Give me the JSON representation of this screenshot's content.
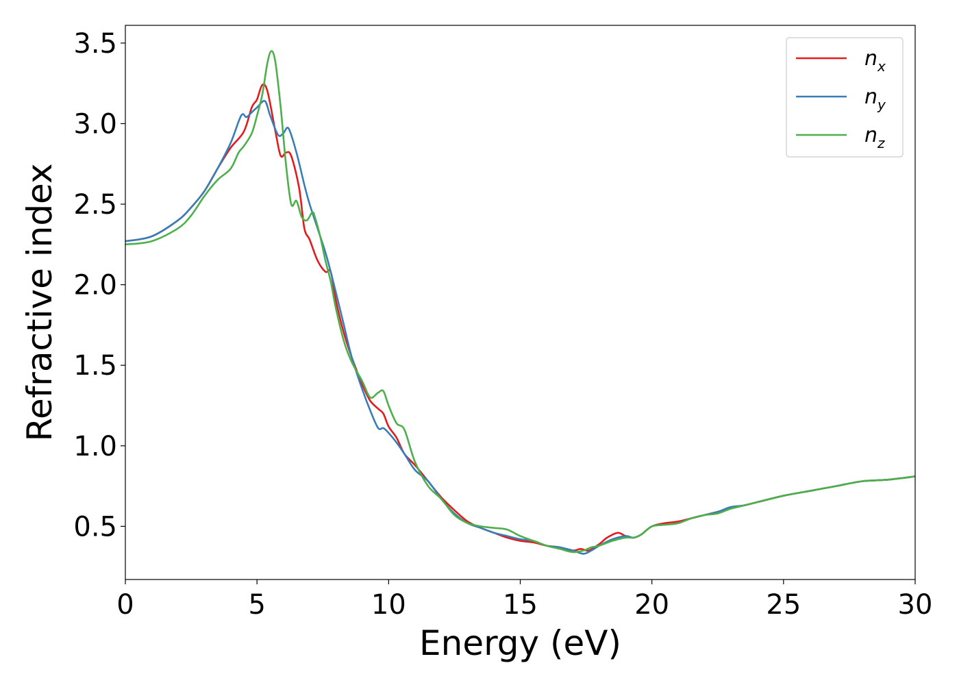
{
  "chart_data": {
    "type": "line",
    "xlabel": "Energy (eV)",
    "ylabel": "Refractive index",
    "xlim": [
      0,
      30
    ],
    "ylim": [
      0.17,
      3.61
    ],
    "xticks": [
      0,
      5,
      10,
      15,
      20,
      25,
      30
    ],
    "yticks": [
      0.5,
      1.0,
      1.5,
      2.0,
      2.5,
      3.0,
      3.5
    ],
    "xtick_labels": [
      "0",
      "5",
      "10",
      "15",
      "20",
      "25",
      "30"
    ],
    "ytick_labels": [
      "0.5",
      "1.0",
      "1.5",
      "2.0",
      "2.5",
      "3.0",
      "3.5"
    ],
    "grid": false,
    "legend_position": "top-right",
    "series": [
      {
        "name": "n_x",
        "legend_base": "n",
        "legend_sub": "x",
        "color": "#e41a1c",
        "x": [
          0,
          1,
          2,
          2.5,
          3,
          3.5,
          4,
          4.5,
          4.8,
          5,
          5.2,
          5.4,
          5.7,
          5.9,
          6.1,
          6.3,
          6.6,
          6.8,
          7,
          7.3,
          7.6,
          7.8,
          8,
          8.3,
          8.6,
          9,
          9.3,
          9.6,
          9.8,
          10,
          10.3,
          10.6,
          11,
          11.5,
          12,
          12.5,
          13,
          13.5,
          14,
          14.5,
          15,
          15.5,
          16,
          16.5,
          17,
          17.3,
          17.6,
          18,
          18.3,
          18.7,
          19,
          19.3,
          19.6,
          20,
          20.5,
          21,
          21.5,
          22,
          22.5,
          23,
          23.5,
          24,
          25,
          26,
          27,
          28,
          29,
          30
        ],
        "y": [
          2.27,
          2.3,
          2.4,
          2.48,
          2.58,
          2.72,
          2.85,
          2.95,
          3.1,
          3.15,
          3.24,
          3.2,
          2.95,
          2.8,
          2.82,
          2.8,
          2.6,
          2.35,
          2.28,
          2.15,
          2.08,
          2.08,
          1.9,
          1.7,
          1.55,
          1.38,
          1.28,
          1.23,
          1.2,
          1.12,
          1.05,
          0.95,
          0.88,
          0.78,
          0.68,
          0.6,
          0.53,
          0.49,
          0.46,
          0.43,
          0.41,
          0.4,
          0.38,
          0.37,
          0.35,
          0.36,
          0.35,
          0.39,
          0.43,
          0.46,
          0.44,
          0.43,
          0.45,
          0.5,
          0.52,
          0.53,
          0.55,
          0.57,
          0.59,
          0.61,
          0.63,
          0.65,
          0.69,
          0.72,
          0.75,
          0.78,
          0.79,
          0.81
        ]
      },
      {
        "name": "n_y",
        "legend_base": "n",
        "legend_sub": "y",
        "color": "#377eb8",
        "x": [
          0,
          1,
          2,
          2.5,
          3,
          3.5,
          4,
          4.4,
          4.6,
          4.8,
          5,
          5.3,
          5.5,
          5.8,
          6,
          6.2,
          6.5,
          6.8,
          7,
          7.3,
          7.6,
          7.8,
          8,
          8.3,
          8.6,
          9,
          9.3,
          9.6,
          9.8,
          10,
          10.3,
          10.6,
          11,
          11.5,
          12,
          12.5,
          13,
          13.5,
          14,
          14.5,
          15,
          15.5,
          16,
          16.5,
          17,
          17.4,
          17.7,
          18,
          18.5,
          19,
          19.3,
          19.6,
          20,
          20.5,
          21,
          21.5,
          22,
          22.5,
          23,
          23.5,
          24,
          25,
          26,
          27,
          28,
          29,
          30
        ],
        "y": [
          2.27,
          2.3,
          2.4,
          2.48,
          2.58,
          2.72,
          2.88,
          3.05,
          3.04,
          3.07,
          3.1,
          3.14,
          3.05,
          2.93,
          2.94,
          2.97,
          2.82,
          2.62,
          2.5,
          2.35,
          2.2,
          2.08,
          1.95,
          1.75,
          1.55,
          1.35,
          1.22,
          1.11,
          1.11,
          1.08,
          1.02,
          0.95,
          0.85,
          0.78,
          0.67,
          0.58,
          0.52,
          0.49,
          0.46,
          0.44,
          0.42,
          0.41,
          0.38,
          0.37,
          0.35,
          0.33,
          0.35,
          0.38,
          0.42,
          0.44,
          0.43,
          0.45,
          0.5,
          0.51,
          0.52,
          0.55,
          0.57,
          0.59,
          0.62,
          0.63,
          0.65,
          0.69,
          0.72,
          0.75,
          0.78,
          0.79,
          0.81
        ]
      },
      {
        "name": "n_z",
        "legend_base": "n",
        "legend_sub": "z",
        "color": "#4daf4a",
        "x": [
          0,
          1,
          2,
          2.5,
          3,
          3.5,
          4,
          4.3,
          4.5,
          4.8,
          5,
          5.2,
          5.4,
          5.55,
          5.7,
          5.9,
          6.1,
          6.3,
          6.5,
          6.7,
          6.9,
          7.1,
          7.2,
          7.4,
          7.6,
          7.8,
          8,
          8.3,
          8.6,
          9,
          9.3,
          9.6,
          9.8,
          10,
          10.3,
          10.6,
          11,
          11.5,
          12,
          12.5,
          13,
          13.5,
          14,
          14.5,
          15,
          15.5,
          16,
          16.5,
          17,
          17.4,
          17.7,
          18,
          18.5,
          19,
          19.3,
          19.6,
          20,
          20.5,
          21,
          21.5,
          22,
          22.5,
          23,
          23.5,
          24,
          25,
          26,
          27,
          28,
          29,
          30
        ],
        "y": [
          2.25,
          2.27,
          2.35,
          2.43,
          2.55,
          2.65,
          2.72,
          2.82,
          2.86,
          2.94,
          3.05,
          3.18,
          3.38,
          3.45,
          3.38,
          3.1,
          2.75,
          2.5,
          2.52,
          2.42,
          2.4,
          2.45,
          2.42,
          2.3,
          2.15,
          2.02,
          1.85,
          1.65,
          1.52,
          1.4,
          1.3,
          1.33,
          1.34,
          1.25,
          1.14,
          1.1,
          0.9,
          0.75,
          0.67,
          0.57,
          0.52,
          0.5,
          0.49,
          0.48,
          0.44,
          0.41,
          0.38,
          0.36,
          0.34,
          0.35,
          0.37,
          0.38,
          0.41,
          0.43,
          0.43,
          0.45,
          0.5,
          0.51,
          0.52,
          0.55,
          0.57,
          0.58,
          0.61,
          0.63,
          0.65,
          0.69,
          0.72,
          0.75,
          0.78,
          0.79,
          0.81
        ]
      }
    ]
  }
}
